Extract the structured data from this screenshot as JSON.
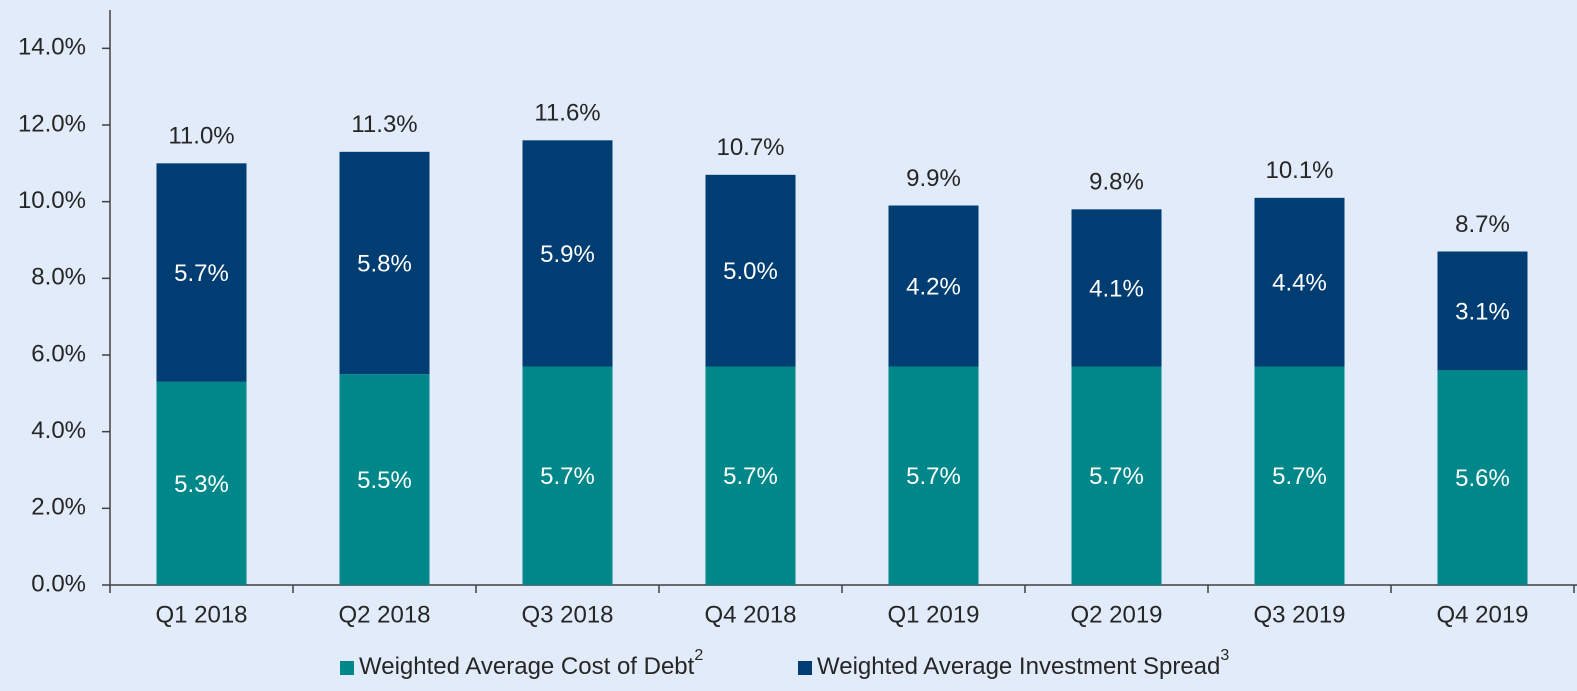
{
  "chart_data": {
    "type": "stacked_bar",
    "categories": [
      "Q1 2018",
      "Q2 2018",
      "Q3 2018",
      "Q4 2018",
      "Q1 2019",
      "Q2 2019",
      "Q3 2019",
      "Q4 2019"
    ],
    "series": [
      {
        "name": "Weighted Average Cost of Debt",
        "footnote": "2",
        "color": "#00878a",
        "values": [
          5.3,
          5.5,
          5.7,
          5.7,
          5.7,
          5.7,
          5.7,
          5.6
        ],
        "value_labels": [
          "5.3%",
          "5.5%",
          "5.7%",
          "5.7%",
          "5.7%",
          "5.7%",
          "5.7%",
          "5.6%"
        ]
      },
      {
        "name": "Weighted Average Investment Spread",
        "footnote": "3",
        "color": "#003d73",
        "values": [
          5.7,
          5.8,
          5.9,
          5.0,
          4.2,
          4.1,
          4.4,
          3.1
        ],
        "value_labels": [
          "5.7%",
          "5.8%",
          "5.9%",
          "5.0%",
          "4.2%",
          "4.1%",
          "4.4%",
          "3.1%"
        ]
      }
    ],
    "totals": [
      11.0,
      11.3,
      11.6,
      10.7,
      9.9,
      9.8,
      10.1,
      8.7
    ],
    "total_labels": [
      "11.0%",
      "11.3%",
      "11.6%",
      "10.7%",
      "9.9%",
      "9.8%",
      "10.1%",
      "8.7%"
    ],
    "ylim": [
      0,
      15
    ],
    "yticks": [
      {
        "value": 0,
        "label": "0.0%"
      },
      {
        "value": 2,
        "label": "2.0%"
      },
      {
        "value": 4,
        "label": "4.0%"
      },
      {
        "value": 6,
        "label": "6.0%"
      },
      {
        "value": 8,
        "label": "8.0%"
      },
      {
        "value": 10,
        "label": "10.0%"
      },
      {
        "value": 12,
        "label": "12.0%"
      },
      {
        "value": 14,
        "label": "14.0%"
      }
    ],
    "legend": "bottom"
  }
}
